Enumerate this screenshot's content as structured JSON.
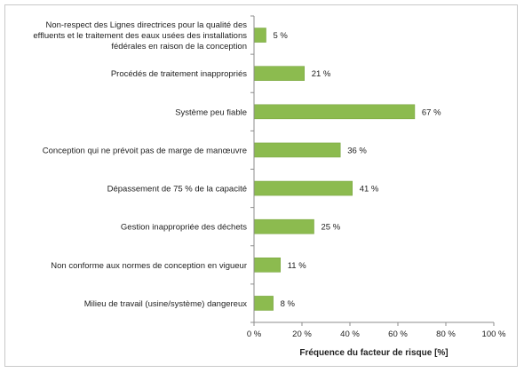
{
  "chart_data": {
    "type": "bar",
    "orientation": "horizontal",
    "categories": [
      [
        "Non-respect des Lignes directrices pour la qualité des",
        "effluents et le traitement des eaux usées des installations",
        "fédérales en raison de la conception"
      ],
      [
        "Procédés de traitement inappropriés"
      ],
      [
        "Système peu fiable"
      ],
      [
        "Conception qui ne prévoit pas de marge de manœuvre"
      ],
      [
        "Dépassement de 75 % de la capacité"
      ],
      [
        "Gestion inappropriée des déchets"
      ],
      [
        "Non conforme aux normes de conception en vigueur"
      ],
      [
        "Milieu de travail (usine/système) dangereux"
      ]
    ],
    "values": [
      5,
      21,
      67,
      36,
      41,
      25,
      11,
      8
    ],
    "value_labels": [
      "5 %",
      "21 %",
      "67 %",
      "36 %",
      "41 %",
      "25 %",
      "11 %",
      "8 %"
    ],
    "xlabel": "Fréquence du facteur de risque [%]",
    "xlim": [
      0,
      100
    ],
    "xticks": [
      0,
      20,
      40,
      60,
      80,
      100
    ],
    "xtick_labels": [
      "0 %",
      "20 %",
      "40 %",
      "60 %",
      "80 %",
      "100 %"
    ],
    "grid": false,
    "legend": "none",
    "bar_color": "#8cbb4f",
    "bar_edge_color": "#7aa640",
    "axis_color": "#8c8c8c"
  }
}
